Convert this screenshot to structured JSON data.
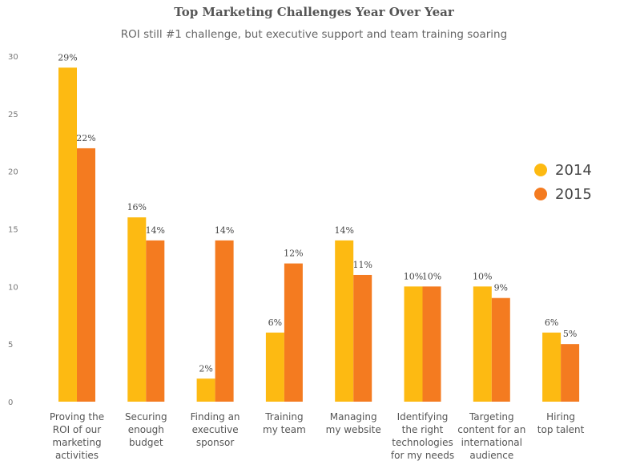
{
  "chart_data": {
    "type": "bar",
    "title": "Top Marketing Challenges Year Over Year",
    "subtitle": "ROI still #1 challenge, but executive support and team training soaring",
    "xlabel": "",
    "ylabel": "",
    "ylim": [
      0,
      30
    ],
    "yticks": [
      0,
      5,
      10,
      15,
      20,
      25,
      30
    ],
    "grid": false,
    "legend_position": "right",
    "categories": [
      [
        "Proving the",
        "ROI of our",
        "marketing",
        "activities"
      ],
      [
        "Securing",
        "enough",
        "budget"
      ],
      [
        "Finding an",
        "executive",
        "sponsor"
      ],
      [
        "Training",
        "my team"
      ],
      [
        "Managing",
        "my website"
      ],
      [
        "Identifying",
        "the right",
        "technologies",
        "for my needs"
      ],
      [
        "Targeting",
        "content for an",
        "international",
        "audience"
      ],
      [
        "Hiring",
        "top talent"
      ]
    ],
    "series": [
      {
        "name": "2014",
        "color": "#FDBA12",
        "values": [
          29,
          16,
          2,
          6,
          14,
          10,
          10,
          6
        ],
        "labels": [
          "29%",
          "16%",
          "2%",
          "6%",
          "14%",
          "10%",
          "10%",
          "6%"
        ]
      },
      {
        "name": "2015",
        "color": "#F47B20",
        "values": [
          22,
          14,
          14,
          12,
          11,
          10,
          9,
          5
        ],
        "labels": [
          "22%",
          "14%",
          "14%",
          "12%",
          "11%",
          "10%",
          "9%",
          "5%"
        ]
      }
    ]
  }
}
